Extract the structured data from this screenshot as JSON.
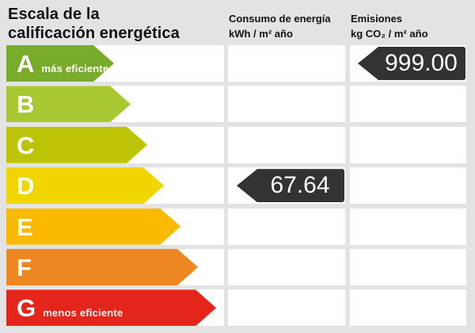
{
  "title": {
    "line1": "Escala de la",
    "line2": "calificación energética"
  },
  "columns": {
    "consumo": {
      "title": "Consumo de energía",
      "unit": "kWh / m² año"
    },
    "emisiones": {
      "title": "Emisiones",
      "unit": "kg CO₂ / m² año"
    }
  },
  "scale": {
    "rows": [
      {
        "letter": "A",
        "note": "más eficiente",
        "color": "#79ab2a",
        "arrow_width": 136
      },
      {
        "letter": "B",
        "note": "",
        "color": "#a8c832",
        "arrow_width": 157
      },
      {
        "letter": "C",
        "note": "",
        "color": "#bcc405",
        "arrow_width": 178
      },
      {
        "letter": "D",
        "note": "",
        "color": "#f1d500",
        "arrow_width": 199
      },
      {
        "letter": "E",
        "note": "",
        "color": "#fbba00",
        "arrow_width": 220
      },
      {
        "letter": "F",
        "note": "",
        "color": "#ed8722",
        "arrow_width": 242
      },
      {
        "letter": "G",
        "note": "menos eficiente",
        "color": "#e3251c",
        "arrow_width": 265
      }
    ]
  },
  "values": {
    "consumo": {
      "value": "67.64",
      "row": "D"
    },
    "emisiones": {
      "value": "999.00",
      "row": "A"
    },
    "badge_color": "#333333"
  },
  "theme": {
    "background": "#e3e3e3",
    "cell_background": "#ffffff"
  },
  "chart_data": {
    "type": "bar",
    "title": "Escala de la calificación energética",
    "categories": [
      "A",
      "B",
      "C",
      "D",
      "E",
      "F",
      "G"
    ],
    "series": [
      {
        "name": "Consumo de energía (kWh/m² año)",
        "rating": "D",
        "value": 67.64
      },
      {
        "name": "Emisiones (kg CO₂/m² año)",
        "rating": "A",
        "value": 999.0
      }
    ],
    "annotations": [
      "A = más eficiente",
      "G = menos eficiente"
    ],
    "legend_position": "none",
    "grid": false
  }
}
